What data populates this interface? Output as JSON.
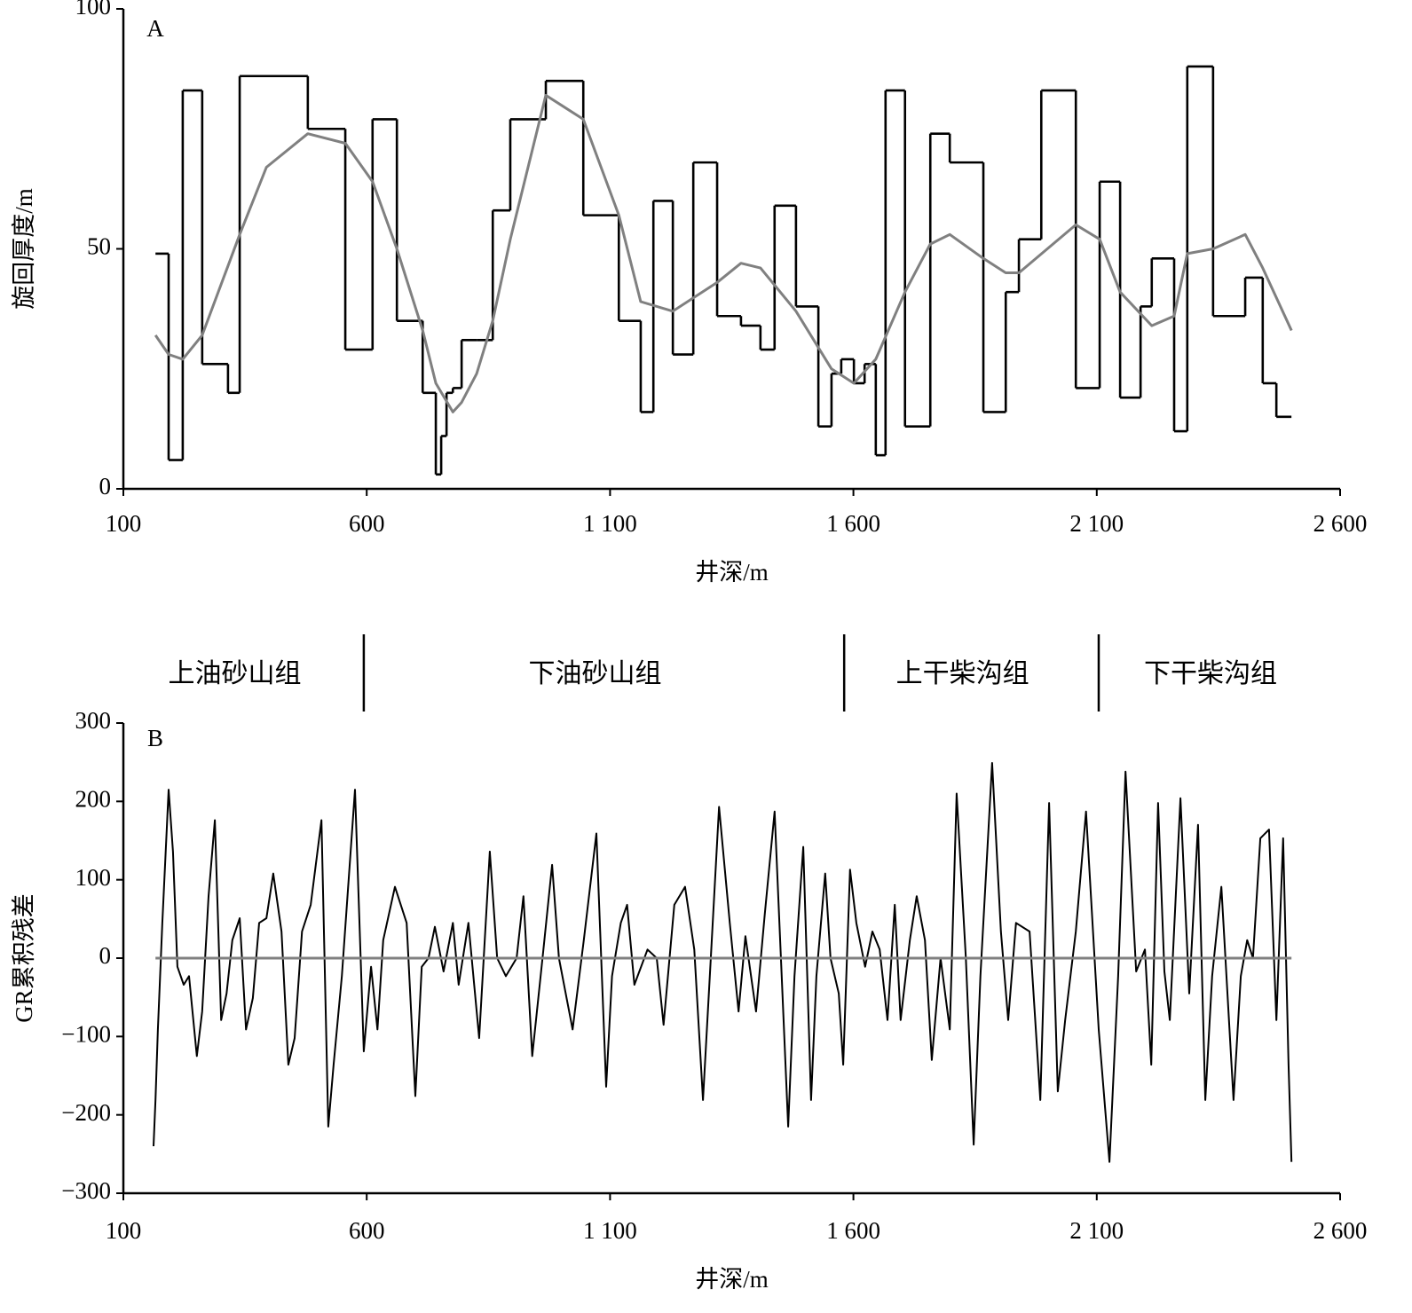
{
  "chart_data": [
    {
      "type": "line",
      "panel": "A",
      "x_label": "井深/m",
      "y_label": "旋回厚度/m",
      "xlim": [
        100,
        2600
      ],
      "ylim": [
        0,
        100
      ],
      "xticks": [
        100,
        600,
        {
          "value": 1100,
          "label": "1 100"
        },
        {
          "value": 1600,
          "label": "1 600"
        },
        {
          "value": 2100,
          "label": "2 100"
        },
        {
          "value": 2600,
          "label": "2 600"
        }
      ],
      "yticks": [
        0,
        50,
        100
      ],
      "series": [
        {
          "color": "#000000",
          "step": "post",
          "edges": [
            166,
            193,
            222,
            262,
            315,
            339,
            479,
            556,
            612,
            662,
            715,
            742,
            753,
            764,
            777,
            795,
            826,
            859,
            895,
            968,
            1045,
            1118,
            1163,
            1189,
            1229,
            1271,
            1320,
            1369,
            1409,
            1438,
            1482,
            1528,
            1555,
            1575,
            1601,
            1623,
            1646,
            1666,
            1706,
            1758,
            1798,
            1867,
            1913,
            1940,
            1986,
            2057,
            2106,
            2148,
            2190,
            2213,
            2259,
            2286,
            2339,
            2405,
            2441,
            2469,
            2500
          ],
          "values": [
            49,
            6,
            83,
            26,
            20,
            86,
            75,
            29,
            77,
            35,
            20,
            3,
            11,
            20,
            21,
            31,
            31,
            58,
            77,
            85,
            57,
            35,
            16,
            60,
            28,
            68,
            36,
            34,
            29,
            59,
            38,
            13,
            24,
            27,
            22,
            26,
            7,
            83,
            13,
            74,
            68,
            16,
            41,
            52,
            83,
            21,
            64,
            19,
            38,
            48,
            12,
            88,
            36,
            44,
            22,
            15
          ]
        },
        {
          "color": "#808080",
          "x": [
            166,
            193,
            222,
            262,
            339,
            394,
            479,
            556,
            612,
            662,
            715,
            742,
            777,
            795,
            826,
            859,
            895,
            968,
            1045,
            1118,
            1163,
            1229,
            1320,
            1369,
            1409,
            1482,
            1555,
            1601,
            1646,
            1706,
            1758,
            1798,
            1867,
            1913,
            1940,
            2057,
            2106,
            2148,
            2213,
            2259,
            2286,
            2339,
            2405,
            2441,
            2500
          ],
          "values": [
            32,
            28,
            27,
            32,
            53,
            67,
            74,
            72,
            64,
            50,
            33,
            22,
            16,
            18,
            24,
            35,
            52,
            82,
            77,
            57,
            39,
            37,
            43,
            47,
            46,
            37,
            25,
            22,
            27,
            41,
            51,
            53,
            48,
            45,
            45,
            55,
            52,
            41,
            34,
            36,
            49,
            50,
            53,
            46,
            33
          ]
        }
      ]
    },
    {
      "type": "line",
      "panel": "B",
      "x_label": "井深/m",
      "y_label": "GR累积残差",
      "xlim": [
        100,
        2600
      ],
      "ylim": [
        -300,
        300
      ],
      "xticks": [
        100,
        600,
        {
          "value": 1100,
          "label": "1 100"
        },
        {
          "value": 1600,
          "label": "1 600"
        },
        {
          "value": 2100,
          "label": "2 100"
        },
        {
          "value": 2600,
          "label": "2 600"
        }
      ],
      "yticks": [
        300,
        200,
        100,
        0,
        {
          "value": -100,
          "label": "−100"
        },
        {
          "value": -200,
          "label": "−200"
        },
        {
          "value": -300,
          "label": "−300"
        }
      ],
      "formations": [
        "上油砂山组",
        "下油砂山组",
        "上干柴沟组",
        "下干柴沟组"
      ],
      "formation_boundaries": [
        594,
        1581,
        2104
      ],
      "series": [
        {
          "color": "#000000",
          "x": [
            162,
            166,
            171,
            180,
            193,
            202,
            211,
            224,
            235,
            251,
            262,
            275,
            288,
            301,
            312,
            324,
            339,
            352,
            366,
            379,
            394,
            408,
            425,
            439,
            452,
            467,
            485,
            507,
            521,
            532,
            549,
            576,
            594,
            609,
            622,
            634,
            658,
            682,
            700,
            713,
            727,
            740,
            758,
            777,
            789,
            809,
            831,
            853,
            868,
            886,
            908,
            922,
            940,
            963,
            981,
            995,
            1023,
            1046,
            1072,
            1092,
            1104,
            1122,
            1135,
            1150,
            1177,
            1196,
            1210,
            1232,
            1254,
            1273,
            1291,
            1305,
            1324,
            1346,
            1364,
            1378,
            1400,
            1418,
            1438,
            1466,
            1479,
            1497,
            1513,
            1524,
            1542,
            1553,
            1570,
            1579,
            1593,
            1606,
            1624,
            1639,
            1654,
            1670,
            1685,
            1697,
            1716,
            1730,
            1747,
            1761,
            1779,
            1798,
            1812,
            1831,
            1847,
            1861,
            1885,
            1903,
            1918,
            1934,
            1962,
            1984,
            2002,
            2020,
            2035,
            2057,
            2078,
            2104,
            2126,
            2144,
            2159,
            2181,
            2199,
            2212,
            2226,
            2239,
            2250,
            2272,
            2290,
            2308,
            2323,
            2337,
            2356,
            2381,
            2396,
            2409,
            2421,
            2436,
            2454,
            2469,
            2483,
            2494,
            2500
          ],
          "values": [
            -240,
            -181,
            -91,
            45,
            215,
            136,
            -11,
            -34,
            -23,
            -125,
            -68,
            79,
            176,
            -79,
            -45,
            23,
            51,
            -91,
            -51,
            45,
            51,
            108,
            34,
            -136,
            -102,
            34,
            68,
            176,
            -215,
            -136,
            -23,
            215,
            -119,
            -11,
            -91,
            23,
            91,
            45,
            -176,
            -11,
            0,
            40,
            -17,
            45,
            -34,
            45,
            -102,
            136,
            0,
            -23,
            0,
            79,
            -125,
            11,
            119,
            0,
            -91,
            23,
            159,
            -164,
            -23,
            45,
            68,
            -34,
            11,
            0,
            -85,
            68,
            91,
            11,
            -181,
            -23,
            193,
            45,
            -68,
            28,
            -68,
            57,
            187,
            -215,
            -23,
            142,
            -181,
            -23,
            108,
            0,
            -45,
            -136,
            113,
            45,
            -11,
            34,
            11,
            -79,
            68,
            -79,
            23,
            79,
            23,
            -130,
            0,
            -91,
            210,
            0,
            -238,
            -23,
            249,
            34,
            -79,
            45,
            34,
            -181,
            198,
            -170,
            -79,
            34,
            187,
            -91,
            -260,
            -23,
            238,
            -17,
            11,
            -136,
            198,
            -17,
            -79,
            204,
            -45,
            170,
            -181,
            -23,
            91,
            -181,
            -23,
            23,
            0,
            153,
            164,
            -79,
            153,
            -136,
            -260
          ]
        },
        {
          "color": "#808080",
          "x": [
            166,
            2500
          ],
          "values": [
            0,
            0
          ]
        }
      ]
    }
  ]
}
